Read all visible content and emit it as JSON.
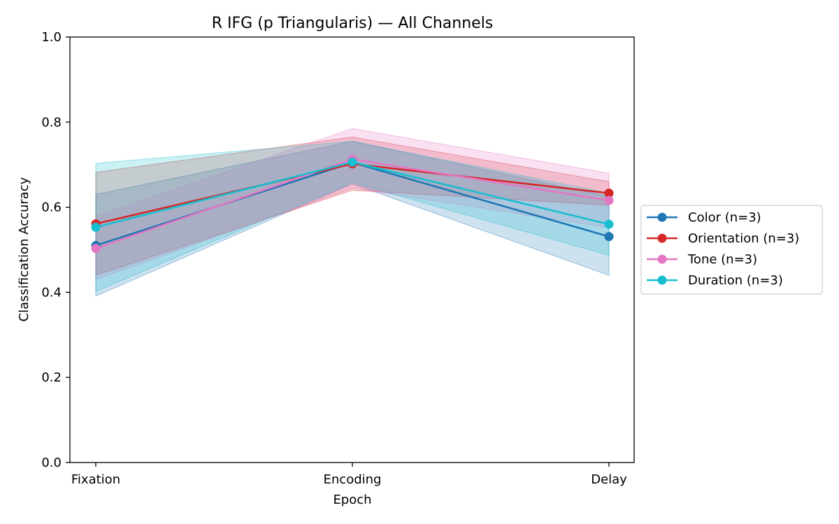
{
  "chart_data": {
    "type": "line",
    "title": "R IFG (p Triangularis) — All Channels",
    "xlabel": "Epoch",
    "ylabel": "Classification Accuracy",
    "categories": [
      "Fixation",
      "Encoding",
      "Delay"
    ],
    "ylim": [
      0,
      1.0
    ],
    "yticks": [
      "0.0",
      "0.2",
      "0.4",
      "0.6",
      "0.8",
      "1.0"
    ],
    "grid": false,
    "legend_position": "outside-right",
    "series": [
      {
        "name": "Color (n=3)",
        "color": "#1f77b4",
        "values": [
          0.51,
          0.705,
          0.531
        ],
        "lower": [
          0.391,
          0.655,
          0.44
        ],
        "upper": [
          0.63,
          0.755,
          0.625
        ]
      },
      {
        "name": "Orientation (n=3)",
        "color": "#d62728",
        "values": [
          0.561,
          0.702,
          0.633
        ],
        "lower": [
          0.44,
          0.64,
          0.605
        ],
        "upper": [
          0.682,
          0.765,
          0.66
        ]
      },
      {
        "name": "Tone (n=3)",
        "color": "#e377c2",
        "values": [
          0.503,
          0.713,
          0.616
        ],
        "lower": [
          0.43,
          0.645,
          0.552
        ],
        "upper": [
          0.578,
          0.785,
          0.68
        ]
      },
      {
        "name": "Duration (n=3)",
        "color": "#17becf",
        "values": [
          0.553,
          0.706,
          0.56
        ],
        "lower": [
          0.402,
          0.658,
          0.487
        ],
        "upper": [
          0.703,
          0.755,
          0.633
        ]
      }
    ]
  }
}
